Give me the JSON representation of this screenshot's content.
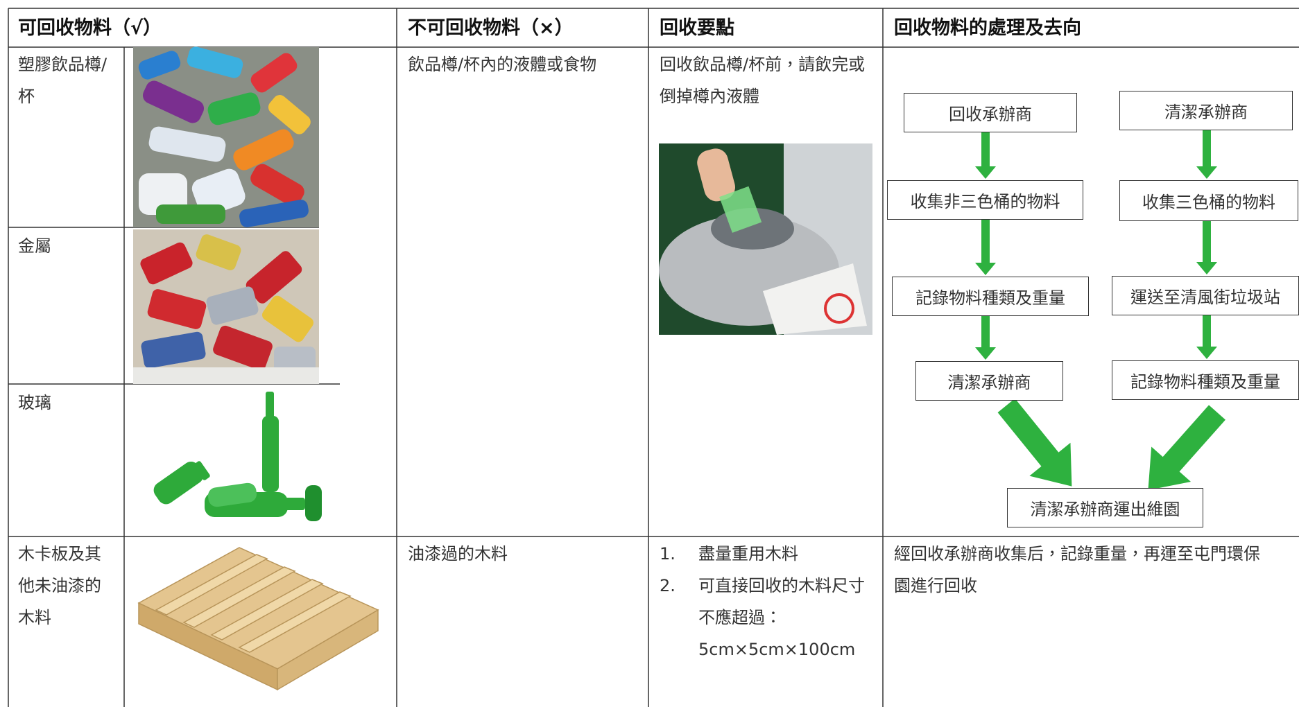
{
  "table": {
    "headers": [
      "可回收物料（√）",
      "不可回收物料（×）",
      "回收要點",
      "回收物料的處理及去向"
    ],
    "rows": [
      {
        "material": "塑膠飲品樽/杯",
        "non_recyclable": "飲品樽/杯內的液體或食物",
        "key_points": "回收飲品樽/杯前，請飲完或倒掉樽內液體"
      },
      {
        "material": "金屬"
      },
      {
        "material": "玻璃"
      },
      {
        "material": "木卡板及其他未油漆的木料",
        "non_recyclable": "油漆過的木料",
        "key_points": [
          {
            "number": "1.",
            "text": "盡量重用木料"
          },
          {
            "number": "2.",
            "text": "可直接回收的木料尺寸不應超過：5cm×5cm×100cm"
          }
        ],
        "processing": "經回收承辦商收集后，記錄重量，再運至屯門環保園進行回收"
      }
    ]
  },
  "flowchart": {
    "nodes": [
      {
        "label": "回收承辦商"
      },
      {
        "label": "清潔承辦商"
      },
      {
        "label": "收集非三色桶的物料"
      },
      {
        "label": "收集三色桶的物料"
      },
      {
        "label": "記錄物料種類及重量"
      },
      {
        "label": "運送至清風街垃圾站"
      },
      {
        "label": "清潔承辦商"
      },
      {
        "label": "記錄物料種類及重量"
      },
      {
        "label": "清潔承辦商運出維園"
      }
    ]
  }
}
